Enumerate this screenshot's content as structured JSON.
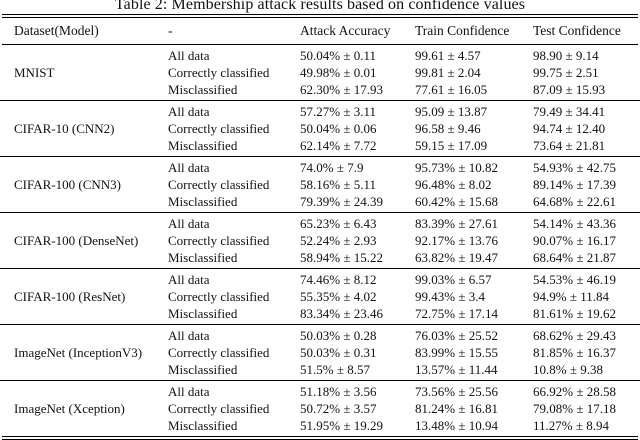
{
  "caption": "Table 2: Membership attack results based on confidence values",
  "table": {
    "headers": [
      "Dataset(Model)",
      "-",
      "Attack Accuracy",
      "Train Confidence",
      "Test Confidence"
    ],
    "sections": [
      {
        "model": "MNIST",
        "rows": [
          {
            "subset": "All data",
            "attack_accuracy": "50.04% ± 0.11",
            "train_confidence": "99.61 ± 4.57",
            "test_confidence": "98.90 ± 9.14"
          },
          {
            "subset": "Correctly classified",
            "attack_accuracy": "49.98% ± 0.01",
            "train_confidence": "99.81 ± 2.04",
            "test_confidence": "99.75 ± 2.51"
          },
          {
            "subset": "Misclassified",
            "attack_accuracy": "62.30% ± 17.93",
            "train_confidence": "77.61 ± 16.05",
            "test_confidence": "87.09 ± 15.93"
          }
        ]
      },
      {
        "model": "CIFAR-10 (CNN2)",
        "rows": [
          {
            "subset": "All data",
            "attack_accuracy": "57.27% ± 3.11",
            "train_confidence": "95.09 ± 13.87",
            "test_confidence": "79.49 ± 34.41"
          },
          {
            "subset": "Correctly classified",
            "attack_accuracy": "50.04% ± 0.06",
            "train_confidence": "96.58 ± 9.46",
            "test_confidence": "94.74 ± 12.40"
          },
          {
            "subset": "Misclassified",
            "attack_accuracy": "62.14% ± 7.72",
            "train_confidence": "59.15 ± 17.09",
            "test_confidence": "73.64 ± 21.81"
          }
        ]
      },
      {
        "model": "CIFAR-100 (CNN3)",
        "rows": [
          {
            "subset": "All data",
            "attack_accuracy": "74.0% ± 7.9",
            "train_confidence": "95.73% ± 10.82",
            "test_confidence": "54.93% ± 42.75"
          },
          {
            "subset": "Correctly classified",
            "attack_accuracy": "58.16% ± 5.11",
            "train_confidence": "96.48% ± 8.02",
            "test_confidence": "89.14% ± 17.39"
          },
          {
            "subset": "Misclassified",
            "attack_accuracy": "79.39% ± 24.39",
            "train_confidence": "60.42% ± 15.68",
            "test_confidence": "64.68% ± 22.61"
          }
        ]
      },
      {
        "model": "CIFAR-100 (DenseNet)",
        "rows": [
          {
            "subset": "All data",
            "attack_accuracy": "65.23% ± 6.43",
            "train_confidence": "83.39% ± 27.61",
            "test_confidence": "54.14% ± 43.36"
          },
          {
            "subset": "Correctly classified",
            "attack_accuracy": "52.24% ± 2.93",
            "train_confidence": "92.17% ± 13.76",
            "test_confidence": "90.07% ± 16.17"
          },
          {
            "subset": "Misclassified",
            "attack_accuracy": "58.94% ± 15.22",
            "train_confidence": "63.82% ± 19.47",
            "test_confidence": "68.64% ± 21.87"
          }
        ]
      },
      {
        "model": "CIFAR-100 (ResNet)",
        "rows": [
          {
            "subset": "All data",
            "attack_accuracy": "74.46% ± 8.12",
            "train_confidence": "99.03% ± 6.57",
            "test_confidence": "54.53% ± 46.19"
          },
          {
            "subset": "Correctly classified",
            "attack_accuracy": "55.35% ± 4.02",
            "train_confidence": "99.43% ± 3.4",
            "test_confidence": "94.9% ± 11.84"
          },
          {
            "subset": "Misclassified",
            "attack_accuracy": "83.34% ± 23.46",
            "train_confidence": "72.75% ± 17.14",
            "test_confidence": "81.61% ± 19.62"
          }
        ]
      },
      {
        "model": "ImageNet (InceptionV3)",
        "rows": [
          {
            "subset": "All data",
            "attack_accuracy": "50.03% ± 0.28",
            "train_confidence": "76.03% ± 25.52",
            "test_confidence": "68.62% ± 29.43"
          },
          {
            "subset": "Correctly classified",
            "attack_accuracy": "50.03% ± 0.31",
            "train_confidence": "83.99% ± 15.55",
            "test_confidence": "81.85% ± 16.37"
          },
          {
            "subset": "Misclassified",
            "attack_accuracy": "51.5% ± 8.57",
            "train_confidence": "13.57% ± 11.44",
            "test_confidence": "10.8% ± 9.38"
          }
        ]
      },
      {
        "model": "ImageNet (Xception)",
        "rows": [
          {
            "subset": "All data",
            "attack_accuracy": "51.18% ± 3.56",
            "train_confidence": "73.56% ± 25.56",
            "test_confidence": "66.92% ± 28.58"
          },
          {
            "subset": "Correctly classified",
            "attack_accuracy": "50.72% ± 3.57",
            "train_confidence": "81.24% ± 16.81",
            "test_confidence": "79.08% ± 17.18"
          },
          {
            "subset": "Misclassified",
            "attack_accuracy": "51.95% ± 19.29",
            "train_confidence": "13.48% ± 10.94",
            "test_confidence": "11.27% ± 8.94"
          }
        ]
      }
    ]
  }
}
